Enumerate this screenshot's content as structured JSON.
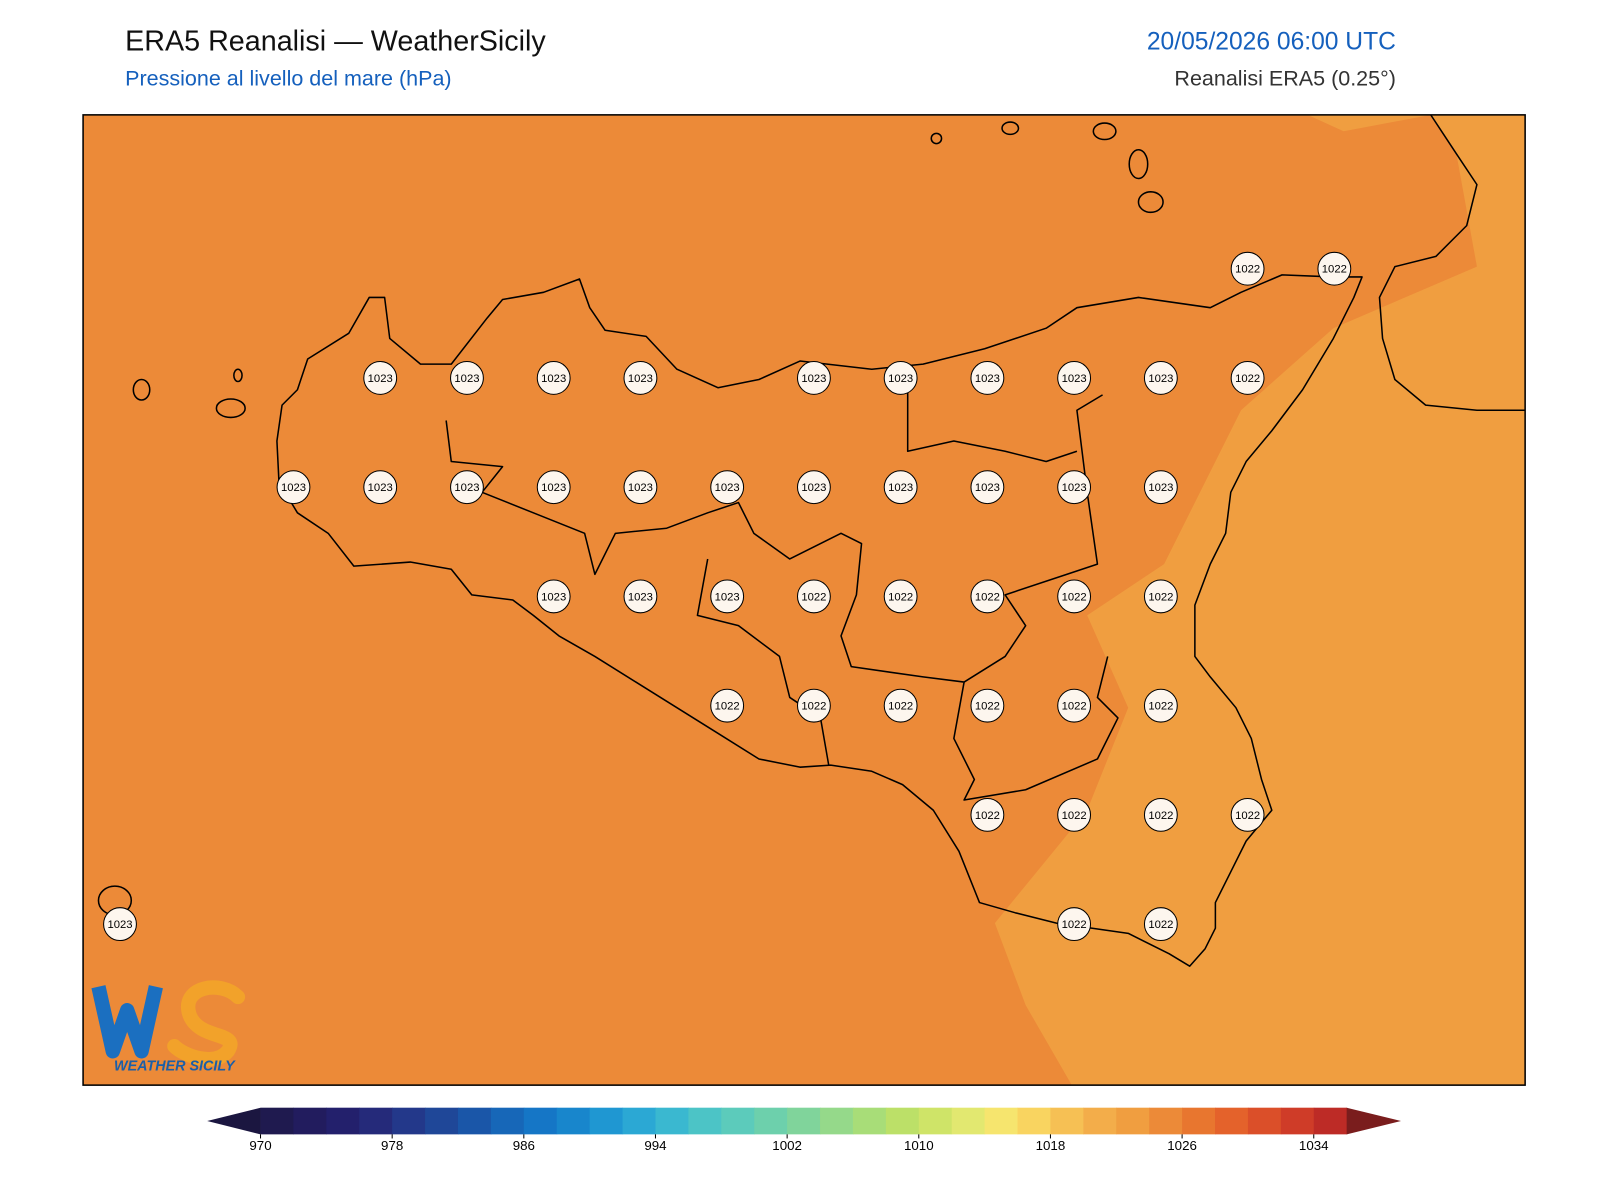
{
  "header": {
    "title": "ERA5 Reanalisi — WeatherSicily",
    "subtitle": "Pressione al livello del mare (hPa)",
    "datetime": "20/05/2026 06:00 UTC",
    "source": "Reanalisi ERA5 (0.25°)"
  },
  "stations": [
    [
      null,
      null,
      null,
      null,
      null,
      null,
      null,
      null,
      null,
      null,
      null,
      null,
      null,
      1022,
      1022
    ],
    [
      null,
      null,
      null,
      1023,
      1023,
      1023,
      1023,
      null,
      1023,
      1023,
      1023,
      1023,
      1023,
      1022,
      null
    ],
    [
      null,
      null,
      1023,
      1023,
      1023,
      1023,
      1023,
      1023,
      1023,
      1023,
      1023,
      1023,
      1023,
      null,
      null
    ],
    [
      null,
      null,
      null,
      null,
      null,
      1023,
      1023,
      1023,
      1022,
      1022,
      1022,
      1022,
      1022,
      null,
      null
    ],
    [
      null,
      null,
      null,
      null,
      null,
      null,
      null,
      1022,
      1022,
      1022,
      1022,
      1022,
      1022,
      null,
      null
    ],
    [
      null,
      null,
      null,
      null,
      null,
      null,
      null,
      null,
      null,
      null,
      1022,
      1022,
      1022,
      1022,
      null
    ],
    [
      1023,
      null,
      null,
      null,
      null,
      null,
      null,
      null,
      null,
      null,
      null,
      1022,
      1022,
      null,
      null
    ]
  ],
  "colorbar": {
    "lim": [
      970,
      1036
    ],
    "step": 2,
    "ticks": [
      970,
      978,
      986,
      994,
      1002,
      1010,
      1018,
      1026,
      1034
    ],
    "colors": [
      "#1f1a4f",
      "#221c5e",
      "#23206c",
      "#252a7a",
      "#23388a",
      "#1f4798",
      "#1a56a8",
      "#1767b8",
      "#1576c6",
      "#1886cc",
      "#1f97d2",
      "#2ba8d4",
      "#3ab8d0",
      "#4cc4c6",
      "#5ccbbb",
      "#6dd0ac",
      "#80d49b",
      "#95d98a",
      "#a8dd78",
      "#bce068",
      "#cfe468",
      "#e2e870",
      "#f6e56e",
      "#f9d460",
      "#f6c054",
      "#f3ad4a",
      "#f09e40",
      "#ec8a38",
      "#e8762f",
      "#e4622b",
      "#db4f29",
      "#cf3c28",
      "#bd2b26"
    ],
    "under_color": "#1b1640",
    "over_color": "#7a1d1d"
  },
  "logo": {
    "text": "WEATHER SICILY"
  }
}
